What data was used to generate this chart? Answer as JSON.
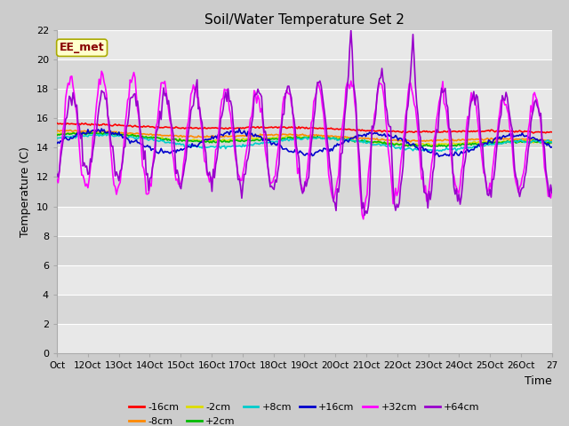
{
  "title": "Soil/Water Temperature Set 2",
  "xlabel": "Time",
  "ylabel": "Temperature (C)",
  "ylim": [
    0,
    22
  ],
  "yticks": [
    0,
    2,
    4,
    6,
    8,
    10,
    12,
    14,
    16,
    18,
    20,
    22
  ],
  "x_labels": [
    "Oct",
    "12Oct",
    "13Oct",
    "14Oct",
    "15Oct",
    "16Oct",
    "17Oct",
    "18Oct",
    "19Oct",
    "20Oct",
    "21Oct",
    "22Oct",
    "23Oct",
    "24Oct",
    "25Oct",
    "26Oct",
    "27"
  ],
  "annotation_text": "EE_met",
  "annotation_bg": "#ffffcc",
  "annotation_border": "#aaaa00",
  "annotation_text_color": "#880000",
  "series": [
    {
      "label": "-16cm",
      "color": "#ff0000",
      "lw": 1.2
    },
    {
      "label": "-8cm",
      "color": "#ff8800",
      "lw": 1.2
    },
    {
      "label": "-2cm",
      "color": "#dddd00",
      "lw": 1.2
    },
    {
      "label": "+2cm",
      "color": "#00bb00",
      "lw": 1.2
    },
    {
      "label": "+8cm",
      "color": "#00cccc",
      "lw": 1.2
    },
    {
      "label": "+16cm",
      "color": "#0000cc",
      "lw": 1.2
    },
    {
      "label": "+32cm",
      "color": "#ff00ff",
      "lw": 1.2
    },
    {
      "label": "+64cm",
      "color": "#9900cc",
      "lw": 1.2
    }
  ]
}
